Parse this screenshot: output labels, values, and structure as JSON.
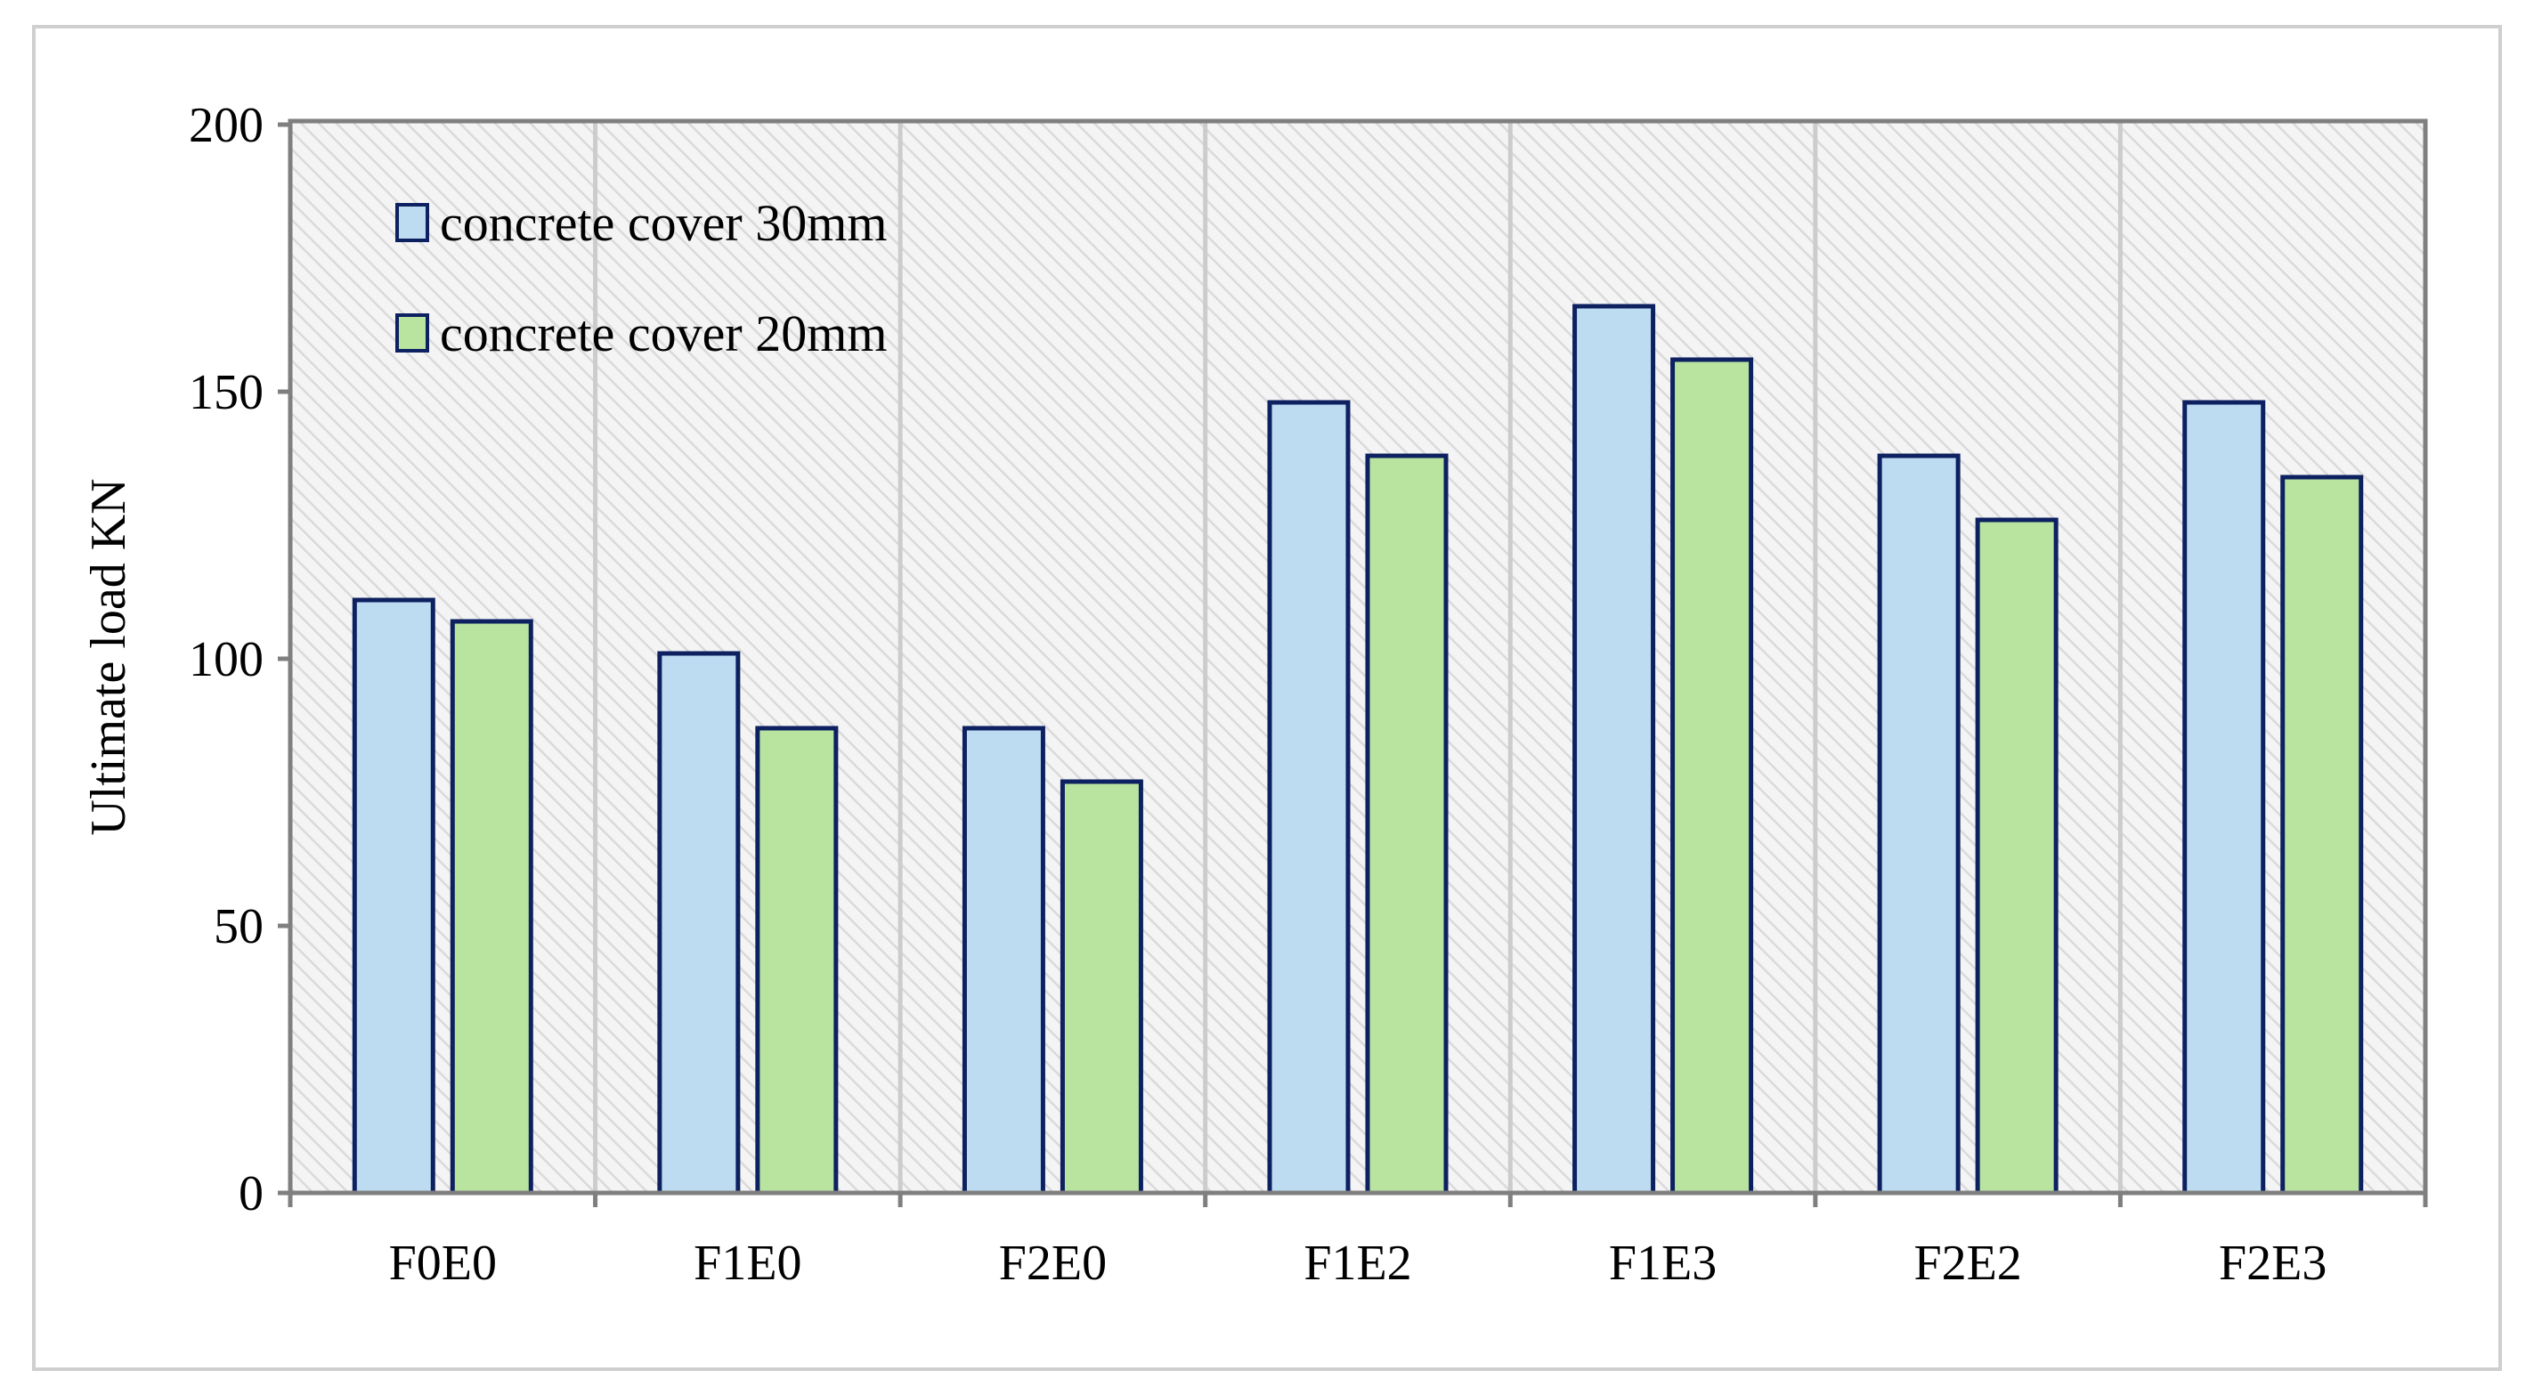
{
  "chart_data": {
    "type": "bar",
    "title": "",
    "xlabel": "",
    "ylabel": "Ultimate load  KN",
    "ylim": [
      0,
      200
    ],
    "yticks": [
      0,
      50,
      100,
      150,
      200
    ],
    "categories": [
      "F0E0",
      "F1E0",
      "F2E0",
      "F1E2",
      "F1E3",
      "F2E2",
      "F2E3"
    ],
    "series": [
      {
        "name": "concrete cover 30mm",
        "color": "#bddcf2",
        "values": [
          111,
          101,
          87,
          148,
          166,
          138,
          148
        ]
      },
      {
        "name": "concrete cover 20mm",
        "color": "#b8e4a0",
        "values": [
          107,
          87,
          77,
          138,
          156,
          126,
          134
        ]
      }
    ],
    "bar_edge_color": "#0d2060",
    "grid": "vertical separators between categories",
    "legend_position": "top-left",
    "plot_background": "light diagonal hatch"
  }
}
